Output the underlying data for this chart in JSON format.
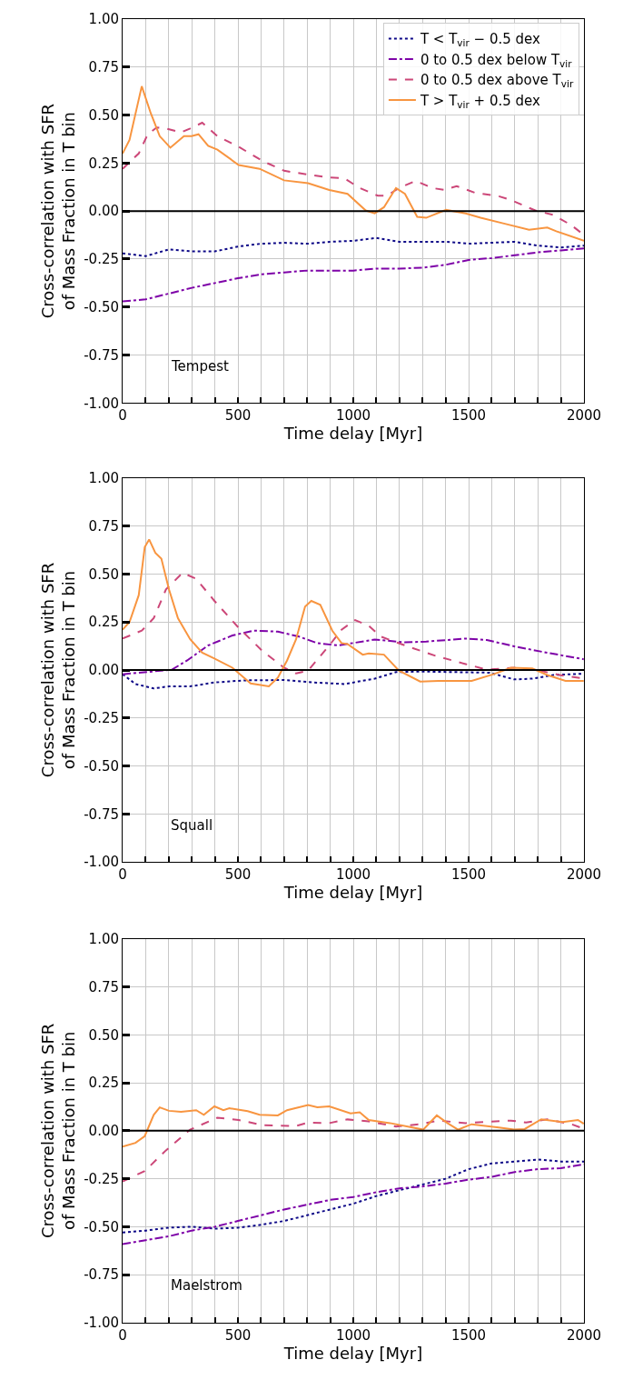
{
  "chart_data": [
    {
      "type": "line",
      "xlabel": "Time delay [Myr]",
      "ylabel": "Cross-correlation with SFR\nof Mass Fraction in T bin",
      "annotations": [
        "Tempest"
      ],
      "xlim": [
        0,
        2000
      ],
      "ylim": [
        -1,
        1
      ],
      "xticks": [
        0,
        {
          "value": 100,
          "label": null
        },
        {
          "value": 200,
          "label": null
        },
        {
          "value": 300,
          "label": null
        },
        {
          "value": 400,
          "label": null
        },
        500,
        {
          "value": 600,
          "label": null
        },
        {
          "value": 700,
          "label": null
        },
        {
          "value": 800,
          "label": null
        },
        {
          "value": 900,
          "label": null
        },
        1000,
        {
          "value": 1100,
          "label": null
        },
        {
          "value": 1200,
          "label": null
        },
        {
          "value": 1300,
          "label": null
        },
        {
          "value": 1400,
          "label": null
        },
        1500,
        {
          "value": 1600,
          "label": null
        },
        {
          "value": 1700,
          "label": null
        },
        {
          "value": 1800,
          "label": null
        },
        {
          "value": 1900,
          "label": null
        },
        2000
      ],
      "yticks": [
        {
          "value": -1,
          "label": "-1.00"
        },
        {
          "value": -0.75,
          "label": "-0.75"
        },
        {
          "value": -0.5,
          "label": "-0.50"
        },
        {
          "value": -0.25,
          "label": "-0.25"
        },
        {
          "value": 0,
          "label": "0.00"
        },
        {
          "value": 0.25,
          "label": "0.25"
        },
        {
          "value": 0.5,
          "label": "0.50"
        },
        {
          "value": 0.75,
          "label": "0.75"
        },
        {
          "value": 1,
          "label": "1.00"
        }
      ],
      "grid": true,
      "legend": "top right",
      "ref_lines": [
        {
          "axis": "y",
          "value": 0,
          "color": "#000000"
        }
      ],
      "series": [
        {
          "name": "T < T$_{vir}$ − 0.5 dex",
          "color": "#0d0887",
          "line_style": "dotted",
          "x": [
            0,
            100,
            200,
            300,
            400,
            500,
            600,
            700,
            800,
            900,
            1000,
            1100,
            1200,
            1300,
            1400,
            1500,
            1600,
            1700,
            1800,
            1900,
            2000
          ],
          "values": [
            -0.22,
            -0.235,
            -0.2,
            -0.21,
            -0.21,
            -0.185,
            -0.17,
            -0.165,
            -0.17,
            -0.16,
            -0.155,
            -0.14,
            -0.16,
            -0.16,
            -0.16,
            -0.17,
            -0.165,
            -0.16,
            -0.18,
            -0.19,
            -0.18
          ]
        },
        {
          "name": "0 to 0.5 dex below T$_{vir}$",
          "color": "#7e03a8",
          "line_style": "dashdot",
          "x": [
            0,
            100,
            200,
            300,
            400,
            500,
            600,
            700,
            800,
            900,
            1000,
            1100,
            1200,
            1300,
            1400,
            1500,
            1600,
            1700,
            1800,
            1900,
            2000
          ],
          "values": [
            -0.47,
            -0.46,
            -0.43,
            -0.4,
            -0.375,
            -0.35,
            -0.33,
            -0.32,
            -0.31,
            -0.31,
            -0.31,
            -0.3,
            -0.3,
            -0.295,
            -0.28,
            -0.255,
            -0.245,
            -0.23,
            -0.215,
            -0.205,
            -0.195
          ]
        },
        {
          "name": "0 to 0.5 dex above T$_{vir}$",
          "color": "#cc4778",
          "line_style": "dashed",
          "x": [
            0,
            70,
            109,
            148,
            188,
            253,
            293,
            345,
            411,
            503,
            608,
            700,
            804,
            896,
            962,
            1028,
            1106,
            1146,
            1198,
            1270,
            1343,
            1395,
            1448,
            1526,
            1631,
            1684,
            1789,
            1867,
            1946,
            2000
          ],
          "values": [
            0.22,
            0.3,
            0.4,
            0.435,
            0.43,
            0.41,
            0.43,
            0.46,
            0.39,
            0.335,
            0.26,
            0.21,
            0.19,
            0.175,
            0.17,
            0.12,
            0.08,
            0.08,
            0.12,
            0.157,
            0.12,
            0.11,
            0.13,
            0.096,
            0.077,
            0.057,
            0.003,
            -0.02,
            -0.074,
            -0.125
          ]
        },
        {
          "name": "T > T$_{vir}$ + 0.5 dex",
          "color": "#f89540",
          "line_style": "solid",
          "x": [
            0,
            30,
            83,
            122,
            161,
            207,
            266,
            299,
            329,
            371,
            411,
            503,
            594,
            700,
            804,
            896,
            975,
            1054,
            1093,
            1133,
            1185,
            1224,
            1277,
            1316,
            1402,
            1487,
            1552,
            1657,
            1762,
            1841,
            1880,
            2000
          ],
          "values": [
            0.3,
            0.37,
            0.65,
            0.51,
            0.39,
            0.33,
            0.39,
            0.39,
            0.4,
            0.34,
            0.32,
            0.24,
            0.22,
            0.16,
            0.145,
            0.11,
            0.09,
            0.003,
            -0.012,
            0.02,
            0.12,
            0.09,
            -0.03,
            -0.035,
            0.006,
            -0.012,
            -0.035,
            -0.066,
            -0.097,
            -0.086,
            -0.105,
            -0.155
          ]
        }
      ]
    },
    {
      "type": "line",
      "xlabel": "Time delay [Myr]",
      "ylabel": "Cross-correlation with SFR\nof Mass Fraction in T bin",
      "annotations": [
        "Squall"
      ],
      "xlim": [
        0,
        2000
      ],
      "ylim": [
        -1,
        1
      ],
      "xticks": [
        0,
        {
          "value": 100,
          "label": null
        },
        {
          "value": 200,
          "label": null
        },
        {
          "value": 300,
          "label": null
        },
        {
          "value": 400,
          "label": null
        },
        500,
        {
          "value": 600,
          "label": null
        },
        {
          "value": 700,
          "label": null
        },
        {
          "value": 800,
          "label": null
        },
        {
          "value": 900,
          "label": null
        },
        1000,
        {
          "value": 1100,
          "label": null
        },
        {
          "value": 1200,
          "label": null
        },
        {
          "value": 1300,
          "label": null
        },
        {
          "value": 1400,
          "label": null
        },
        1500,
        {
          "value": 1600,
          "label": null
        },
        {
          "value": 1700,
          "label": null
        },
        {
          "value": 1800,
          "label": null
        },
        {
          "value": 1900,
          "label": null
        },
        2000
      ],
      "yticks": [
        {
          "value": -1,
          "label": "-1.00"
        },
        {
          "value": -0.75,
          "label": "-0.75"
        },
        {
          "value": -0.5,
          "label": "-0.50"
        },
        {
          "value": -0.25,
          "label": "-0.25"
        },
        {
          "value": 0,
          "label": "0.00"
        },
        {
          "value": 0.25,
          "label": "0.25"
        },
        {
          "value": 0.5,
          "label": "0.50"
        },
        {
          "value": 0.75,
          "label": "0.75"
        },
        {
          "value": 1,
          "label": "1.00"
        }
      ],
      "grid": true,
      "ref_lines": [
        {
          "axis": "y",
          "value": 0,
          "color": "#000000"
        }
      ],
      "series": [
        {
          "color": "#0d0887",
          "line_style": "dotted",
          "x": [
            0,
            56,
            135,
            201,
            293,
            398,
            529,
            700,
            831,
            962,
            1093,
            1185,
            1290,
            1448,
            1592,
            1697,
            1776,
            1867,
            1999
          ],
          "values": [
            -0.022,
            -0.073,
            -0.096,
            -0.085,
            -0.085,
            -0.065,
            -0.054,
            -0.052,
            -0.065,
            -0.073,
            -0.045,
            -0.011,
            -0.008,
            -0.011,
            -0.014,
            -0.049,
            -0.045,
            -0.026,
            -0.019
          ]
        },
        {
          "color": "#7e03a8",
          "line_style": "dashdot",
          "x": [
            0,
            109,
            214,
            280,
            371,
            476,
            568,
            673,
            765,
            844,
            936,
            1093,
            1224,
            1316,
            1487,
            1579,
            1710,
            1841,
            1999
          ],
          "values": [
            -0.022,
            -0.01,
            0.002,
            0.05,
            0.128,
            0.18,
            0.205,
            0.2,
            0.174,
            0.14,
            0.128,
            0.159,
            0.144,
            0.148,
            0.164,
            0.156,
            0.12,
            0.09,
            0.056
          ]
        },
        {
          "color": "#cc4778",
          "line_style": "dashed",
          "x": [
            0,
            83,
            135,
            188,
            260,
            319,
            398,
            503,
            608,
            700,
            752,
            804,
            896,
            949,
            1008,
            1067,
            1119,
            1224,
            1356,
            1487,
            1579,
            1697,
            1789,
            1894,
            1999
          ],
          "values": [
            0.164,
            0.205,
            0.27,
            0.42,
            0.506,
            0.475,
            0.36,
            0.22,
            0.097,
            0.012,
            -0.018,
            -0.003,
            0.128,
            0.21,
            0.26,
            0.23,
            0.174,
            0.128,
            0.074,
            0.031,
            0.002,
            0.012,
            0.002,
            -0.026,
            -0.045
          ]
        },
        {
          "color": "#f89540",
          "line_style": "solid",
          "x": [
            0,
            30,
            70,
            96,
            115,
            142,
            168,
            201,
            240,
            293,
            345,
            398,
            476,
            555,
            634,
            673,
            713,
            752,
            791,
            818,
            857,
            909,
            949,
            975,
            1041,
            1067,
            1133,
            1198,
            1290,
            1369,
            1421,
            1513,
            1605,
            1684,
            1776,
            1841,
            1920,
            1999
          ],
          "values": [
            0.21,
            0.25,
            0.39,
            0.64,
            0.68,
            0.61,
            0.58,
            0.42,
            0.27,
            0.16,
            0.09,
            0.06,
            0.012,
            -0.07,
            -0.085,
            -0.04,
            0.05,
            0.16,
            0.33,
            0.36,
            0.34,
            0.205,
            0.14,
            0.135,
            0.08,
            0.086,
            0.08,
            -0.003,
            -0.06,
            -0.057,
            -0.057,
            -0.057,
            -0.023,
            0.012,
            0.008,
            -0.026,
            -0.057,
            -0.057
          ]
        }
      ]
    },
    {
      "type": "line",
      "xlabel": "Time delay [Myr]",
      "ylabel": "Cross-correlation with SFR\nof Mass Fraction in T bin",
      "annotations": [
        "Maelstrom"
      ],
      "xlim": [
        0,
        2000
      ],
      "ylim": [
        -1,
        1
      ],
      "xticks": [
        0,
        {
          "value": 100,
          "label": null
        },
        {
          "value": 200,
          "label": null
        },
        {
          "value": 300,
          "label": null
        },
        {
          "value": 400,
          "label": null
        },
        500,
        {
          "value": 600,
          "label": null
        },
        {
          "value": 700,
          "label": null
        },
        {
          "value": 800,
          "label": null
        },
        {
          "value": 900,
          "label": null
        },
        1000,
        {
          "value": 1100,
          "label": null
        },
        {
          "value": 1200,
          "label": null
        },
        {
          "value": 1300,
          "label": null
        },
        {
          "value": 1400,
          "label": null
        },
        1500,
        {
          "value": 1600,
          "label": null
        },
        {
          "value": 1700,
          "label": null
        },
        {
          "value": 1800,
          "label": null
        },
        {
          "value": 1900,
          "label": null
        },
        2000
      ],
      "yticks": [
        {
          "value": -1,
          "label": "-1.00"
        },
        {
          "value": -0.75,
          "label": "-0.75"
        },
        {
          "value": -0.5,
          "label": "-0.50"
        },
        {
          "value": -0.25,
          "label": "-0.25"
        },
        {
          "value": 0,
          "label": "0.00"
        },
        {
          "value": 0.25,
          "label": "0.25"
        },
        {
          "value": 0.5,
          "label": "0.50"
        },
        {
          "value": 0.75,
          "label": "0.75"
        },
        {
          "value": 1,
          "label": "1.00"
        }
      ],
      "grid": true,
      "ref_lines": [
        {
          "axis": "y",
          "value": 0,
          "color": "#000000"
        }
      ],
      "series": [
        {
          "color": "#0d0887",
          "line_style": "dotted",
          "x": [
            0,
            100,
            200,
            300,
            400,
            500,
            600,
            700,
            800,
            900,
            1000,
            1100,
            1200,
            1300,
            1400,
            1500,
            1600,
            1700,
            1800,
            1900,
            2000
          ],
          "values": [
            -0.53,
            -0.52,
            -0.505,
            -0.5,
            -0.51,
            -0.505,
            -0.49,
            -0.47,
            -0.44,
            -0.41,
            -0.38,
            -0.34,
            -0.31,
            -0.28,
            -0.25,
            -0.2,
            -0.17,
            -0.16,
            -0.15,
            -0.16,
            -0.16
          ]
        },
        {
          "color": "#7e03a8",
          "line_style": "dashdot",
          "x": [
            0,
            100,
            200,
            300,
            400,
            500,
            600,
            700,
            800,
            900,
            1000,
            1100,
            1200,
            1300,
            1400,
            1500,
            1600,
            1700,
            1800,
            1900,
            2000
          ],
          "values": [
            -0.59,
            -0.57,
            -0.55,
            -0.52,
            -0.5,
            -0.47,
            -0.44,
            -0.41,
            -0.385,
            -0.36,
            -0.345,
            -0.32,
            -0.3,
            -0.29,
            -0.275,
            -0.255,
            -0.24,
            -0.215,
            -0.2,
            -0.195,
            -0.175
          ]
        },
        {
          "color": "#cc4778",
          "line_style": "dashed",
          "x": [
            0,
            96,
            188,
            293,
            411,
            503,
            608,
            752,
            804,
            896,
            975,
            1067,
            1185,
            1290,
            1369,
            1487,
            1684,
            1749,
            1841,
            1946,
            1999
          ],
          "values": [
            -0.264,
            -0.21,
            -0.102,
            0.006,
            0.068,
            0.056,
            0.029,
            0.025,
            0.043,
            0.04,
            0.059,
            0.049,
            0.022,
            0.034,
            0.053,
            0.04,
            0.053,
            0.043,
            0.06,
            0.034,
            0.011
          ]
        },
        {
          "color": "#f89540",
          "line_style": "solid",
          "x": [
            0,
            56,
            96,
            135,
            161,
            201,
            253,
            319,
            352,
            398,
            437,
            463,
            542,
            594,
            673,
            713,
            804,
            844,
            896,
            988,
            1028,
            1067,
            1159,
            1303,
            1362,
            1408,
            1454,
            1513,
            1631,
            1697,
            1743,
            1815,
            1907,
            1974,
            1999
          ],
          "values": [
            -0.083,
            -0.063,
            -0.028,
            0.083,
            0.122,
            0.104,
            0.099,
            0.107,
            0.083,
            0.127,
            0.107,
            0.117,
            0.102,
            0.083,
            0.08,
            0.107,
            0.134,
            0.122,
            0.127,
            0.091,
            0.096,
            0.056,
            0.04,
            0.006,
            0.08,
            0.04,
            0.006,
            0.034,
            0.017,
            0.006,
            0.009,
            0.06,
            0.045,
            0.056,
            0.037
          ]
        }
      ]
    }
  ]
}
